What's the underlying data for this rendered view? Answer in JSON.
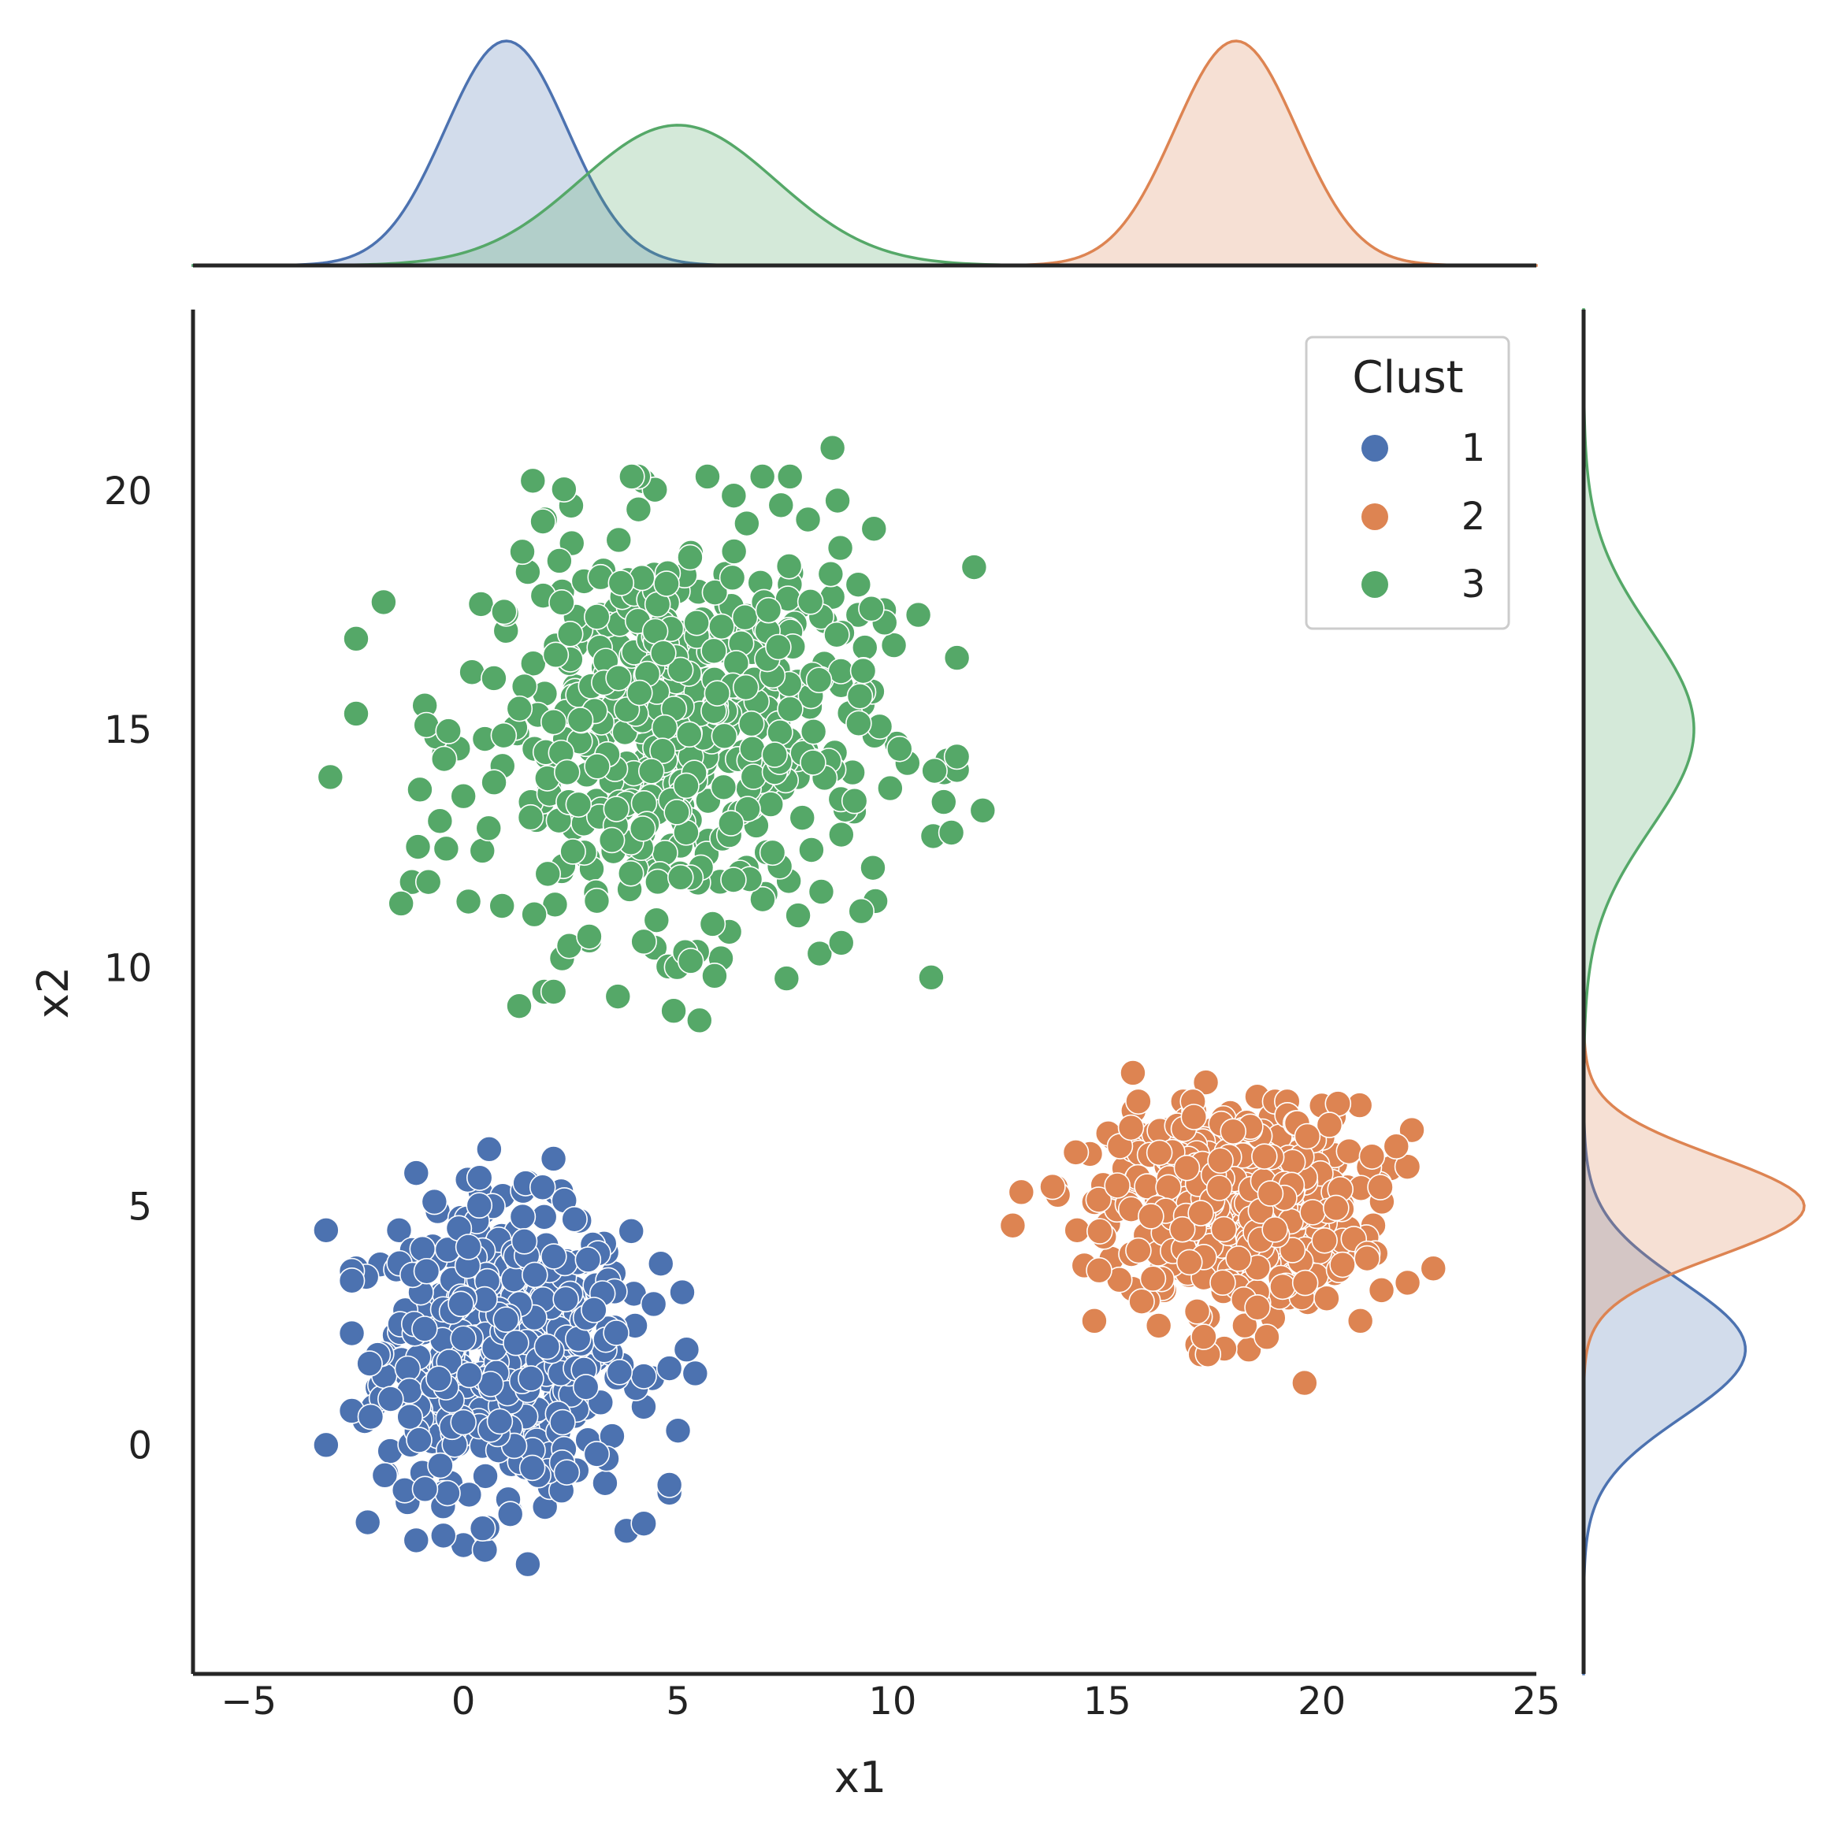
{
  "chart_data": {
    "type": "scatter",
    "title": "",
    "xlabel": "x1",
    "ylabel": "x2",
    "xlim": [
      -6.3,
      25.0
    ],
    "ylim": [
      -4.8,
      23.8
    ],
    "xticks": [
      -5,
      0,
      5,
      10,
      15,
      20,
      25
    ],
    "xtick_labels": [
      "−5",
      "0",
      "5",
      "10",
      "15",
      "20",
      "25"
    ],
    "yticks": [
      0,
      5,
      10,
      15,
      20
    ],
    "ytick_labels": [
      "0",
      "5",
      "10",
      "15",
      "20"
    ],
    "grid": false,
    "legend": {
      "title": "Clust",
      "position": "top-right"
    },
    "marginal": {
      "type": "kde",
      "top": "x1 density per cluster",
      "right": "x2 density per cluster"
    },
    "series": [
      {
        "name": "1",
        "color": "#4c72b0",
        "center": [
          1.0,
          2.0
        ],
        "spread": [
          1.5,
          1.5
        ],
        "x_range": [
          -3.2,
          5.4
        ],
        "y_range": [
          -2.5,
          6.2
        ],
        "points": [
          [
            -3.2,
            4.5
          ],
          [
            -3.2,
            0.0
          ],
          [
            -2.5,
            3.7
          ],
          [
            -2.3,
            0.5
          ],
          [
            -2.0,
            1.2
          ],
          [
            -1.8,
            -0.6
          ],
          [
            -1.6,
            2.3
          ],
          [
            -1.5,
            4.5
          ],
          [
            -1.3,
            -1.2
          ],
          [
            -1.1,
            5.7
          ],
          [
            -1.1,
            -2.0
          ],
          [
            -0.9,
            2.8
          ],
          [
            -0.6,
            0.6
          ],
          [
            -0.6,
            4.9
          ],
          [
            -0.3,
            -0.8
          ],
          [
            -0.2,
            1.9
          ],
          [
            0.0,
            3.6
          ],
          [
            0.0,
            -2.1
          ],
          [
            0.2,
            0.3
          ],
          [
            0.4,
            5.3
          ],
          [
            0.5,
            -2.2
          ],
          [
            0.6,
            6.2
          ],
          [
            0.7,
            1.1
          ],
          [
            0.9,
            3.1
          ],
          [
            1.0,
            4.1
          ],
          [
            1.1,
            -1.4
          ],
          [
            1.3,
            2.2
          ],
          [
            1.5,
            5.5
          ],
          [
            1.5,
            -2.5
          ],
          [
            1.6,
            0.8
          ],
          [
            1.8,
            3.3
          ],
          [
            1.9,
            -1.3
          ],
          [
            2.0,
            1.5
          ],
          [
            2.1,
            6.0
          ],
          [
            2.3,
            -0.4
          ],
          [
            2.5,
            2.7
          ],
          [
            2.7,
            4.7
          ],
          [
            2.9,
            0.1
          ],
          [
            3.1,
            1.8
          ],
          [
            3.3,
            -0.8
          ],
          [
            3.5,
            3.6
          ],
          [
            3.8,
            -1.8
          ],
          [
            4.0,
            2.5
          ],
          [
            4.2,
            0.8
          ],
          [
            4.4,
            1.4
          ],
          [
            4.6,
            3.8
          ],
          [
            4.8,
            -1.0
          ],
          [
            5.0,
            0.3
          ],
          [
            5.1,
            3.2
          ],
          [
            5.2,
            2.0
          ],
          [
            5.4,
            1.5
          ]
        ]
      },
      {
        "name": "2",
        "color": "#dd8452",
        "center": [
          18.0,
          5.0
        ],
        "spread": [
          1.5,
          1.1
        ],
        "x_range": [
          12.8,
          22.6
        ],
        "y_range": [
          1.3,
          7.8
        ],
        "points": [
          [
            12.8,
            4.6
          ],
          [
            13.0,
            5.3
          ],
          [
            13.8,
            5.4
          ],
          [
            14.3,
            4.5
          ],
          [
            14.6,
            6.1
          ],
          [
            14.7,
            2.6
          ],
          [
            15.1,
            3.9
          ],
          [
            15.4,
            5.8
          ],
          [
            15.6,
            7.8
          ],
          [
            15.9,
            4.4
          ],
          [
            16.2,
            2.5
          ],
          [
            16.4,
            6.6
          ],
          [
            16.7,
            3.7
          ],
          [
            16.9,
            5.1
          ],
          [
            17.1,
            2.1
          ],
          [
            17.3,
            7.6
          ],
          [
            17.5,
            4.8
          ],
          [
            17.7,
            3.3
          ],
          [
            17.9,
            6.1
          ],
          [
            18.1,
            5.5
          ],
          [
            18.3,
            2.0
          ],
          [
            18.5,
            7.3
          ],
          [
            18.7,
            4.2
          ],
          [
            18.9,
            5.9
          ],
          [
            19.1,
            3.1
          ],
          [
            19.3,
            6.7
          ],
          [
            19.6,
            1.3
          ],
          [
            19.8,
            4.9
          ],
          [
            20.1,
            6.2
          ],
          [
            20.3,
            3.6
          ],
          [
            20.6,
            5.4
          ],
          [
            20.9,
            2.6
          ],
          [
            21.2,
            4.6
          ],
          [
            21.6,
            5.8
          ],
          [
            22.0,
            3.4
          ],
          [
            22.1,
            6.6
          ],
          [
            22.6,
            3.7
          ]
        ]
      },
      {
        "name": "3",
        "color": "#55a868",
        "center": [
          5.0,
          15.0
        ],
        "spread": [
          2.4,
          2.2
        ],
        "x_range": [
          -3.1,
          12.1
        ],
        "y_range": [
          8.9,
          20.9
        ],
        "points": [
          [
            -3.1,
            14.0
          ],
          [
            -2.5,
            16.9
          ],
          [
            -1.2,
            11.8
          ],
          [
            -0.9,
            15.5
          ],
          [
            -0.4,
            12.5
          ],
          [
            0.0,
            13.6
          ],
          [
            0.2,
            16.2
          ],
          [
            0.5,
            14.8
          ],
          [
            0.9,
            11.3
          ],
          [
            1.3,
            9.2
          ],
          [
            1.5,
            18.3
          ],
          [
            1.7,
            13.1
          ],
          [
            1.9,
            19.4
          ],
          [
            2.3,
            10.2
          ],
          [
            2.6,
            15.9
          ],
          [
            2.9,
            12.3
          ],
          [
            3.2,
            17.4
          ],
          [
            3.6,
            9.4
          ],
          [
            3.9,
            14.1
          ],
          [
            4.2,
            20.2
          ],
          [
            4.5,
            11.0
          ],
          [
            4.7,
            16.6
          ],
          [
            4.9,
            9.1
          ],
          [
            5.1,
            13.4
          ],
          [
            5.3,
            18.7
          ],
          [
            5.5,
            8.9
          ],
          [
            5.8,
            15.2
          ],
          [
            6.0,
            10.2
          ],
          [
            6.3,
            19.9
          ],
          [
            6.6,
            12.1
          ],
          [
            6.9,
            16.9
          ],
          [
            7.2,
            14.3
          ],
          [
            7.4,
            19.7
          ],
          [
            7.8,
            11.1
          ],
          [
            8.1,
            16.0
          ],
          [
            8.3,
            10.3
          ],
          [
            8.6,
            20.9
          ],
          [
            8.9,
            13.5
          ],
          [
            9.2,
            17.4
          ],
          [
            9.6,
            11.4
          ],
          [
            10.1,
            14.7
          ],
          [
            10.6,
            17.4
          ],
          [
            10.9,
            9.8
          ],
          [
            11.2,
            14.1
          ],
          [
            11.5,
            16.5
          ],
          [
            11.9,
            18.4
          ],
          [
            12.1,
            13.3
          ]
        ]
      }
    ]
  }
}
